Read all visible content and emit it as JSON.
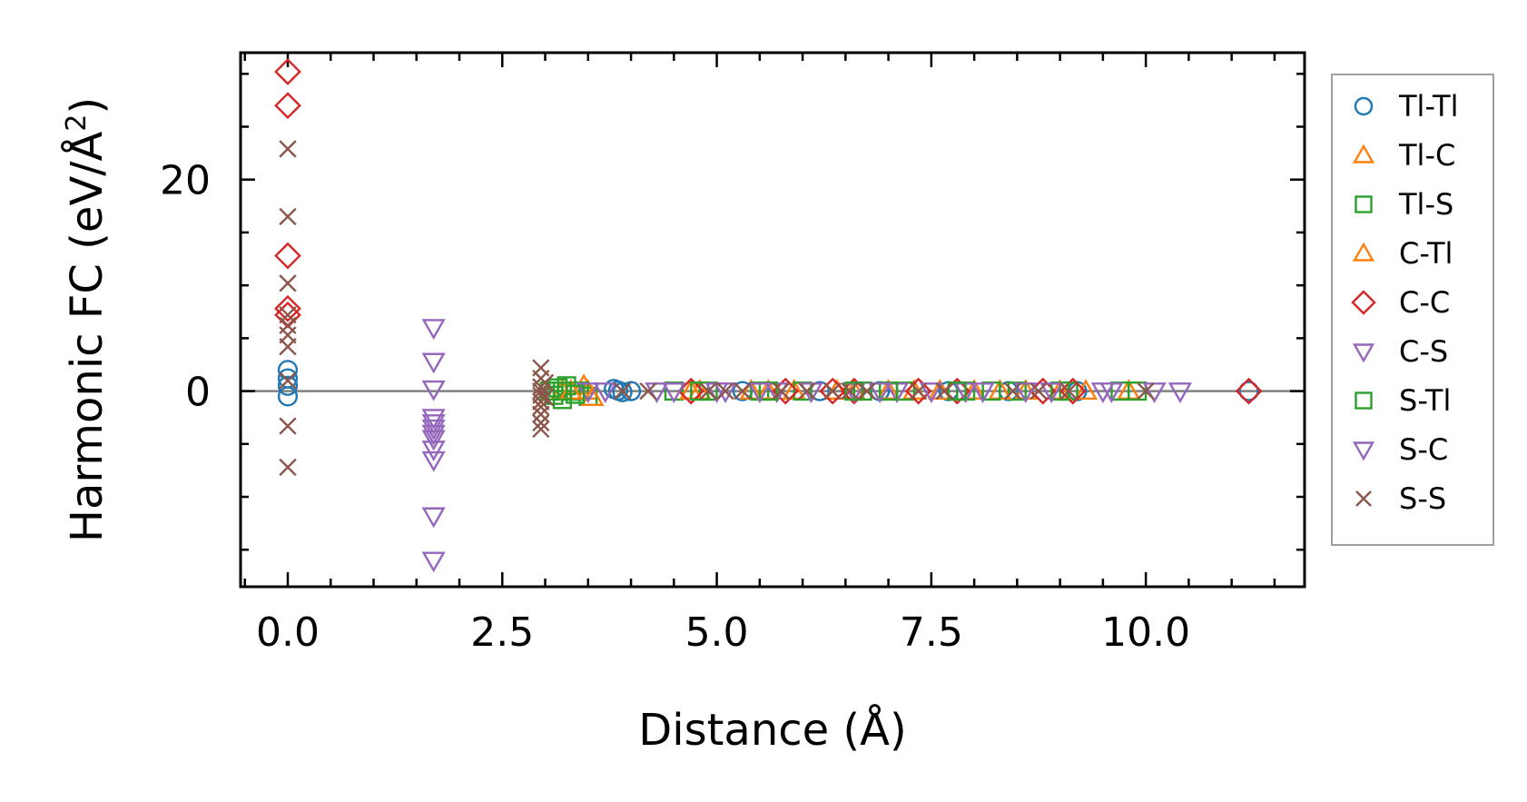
{
  "chart_data": {
    "type": "scatter",
    "title": "",
    "xlabel": "Distance (Å)",
    "ylabel_main": "Harmonic FC (eV/Å",
    "ylabel_sup": "2",
    "ylabel_end": ")",
    "xlim": [
      -0.55,
      11.85
    ],
    "ylim": [
      -18.5,
      32.0
    ],
    "xticks": [
      0.0,
      2.5,
      5.0,
      7.5,
      10.0
    ],
    "xtick_labels": [
      "0.0",
      "2.5",
      "5.0",
      "7.5",
      "10.0"
    ],
    "yticks": [
      0,
      20
    ],
    "ytick_labels": [
      "0",
      "20"
    ],
    "x_minor_step": 0.5,
    "y_minor_step": 5,
    "zero_line": true,
    "grid": false,
    "legend_position": "outside-right",
    "series": [
      {
        "name": "Tl-Tl",
        "marker": "circle",
        "color": "#1f77b4",
        "points": [
          [
            0.0,
            2.0
          ],
          [
            0.0,
            1.2
          ],
          [
            0.0,
            0.5
          ],
          [
            0.0,
            -0.5
          ],
          [
            3.8,
            0.2
          ],
          [
            3.85,
            0.05
          ],
          [
            3.9,
            -0.1
          ],
          [
            4.0,
            0.0
          ],
          [
            5.3,
            0.0
          ],
          [
            6.2,
            0.0
          ],
          [
            6.9,
            0.0
          ],
          [
            7.7,
            0.0
          ],
          [
            8.4,
            0.0
          ],
          [
            9.2,
            0.0
          ],
          [
            11.2,
            0.0
          ]
        ]
      },
      {
        "name": "Tl-C",
        "marker": "triangle-up",
        "color": "#ff7f0e",
        "points": [
          [
            3.2,
            0.0
          ],
          [
            3.45,
            0.5
          ],
          [
            3.5,
            0.0
          ],
          [
            4.8,
            0.0
          ],
          [
            5.4,
            0.0
          ],
          [
            5.9,
            0.0
          ],
          [
            6.6,
            0.0
          ],
          [
            7.3,
            0.0
          ],
          [
            8.0,
            0.0
          ],
          [
            8.6,
            0.0
          ],
          [
            9.3,
            0.0
          ],
          [
            9.8,
            0.0
          ]
        ]
      },
      {
        "name": "Tl-S",
        "marker": "square",
        "color": "#2ca02c",
        "points": [
          [
            3.05,
            0.0
          ],
          [
            3.1,
            -0.4
          ],
          [
            3.15,
            0.3
          ],
          [
            3.2,
            -0.8
          ],
          [
            3.25,
            0.5
          ],
          [
            3.3,
            0.0
          ],
          [
            3.4,
            0.0
          ],
          [
            3.5,
            -0.5
          ],
          [
            4.5,
            0.0
          ],
          [
            4.9,
            0.0
          ],
          [
            5.5,
            0.0
          ],
          [
            6.0,
            0.0
          ],
          [
            6.7,
            0.0
          ],
          [
            7.2,
            0.0
          ],
          [
            7.9,
            0.0
          ],
          [
            8.5,
            0.0
          ],
          [
            9.1,
            0.0
          ],
          [
            9.7,
            0.0
          ]
        ]
      },
      {
        "name": "C-Tl",
        "marker": "triangle-up",
        "color": "#ff7f0e",
        "points": [
          [
            3.3,
            0.0
          ],
          [
            3.55,
            -0.6
          ],
          [
            4.7,
            0.0
          ],
          [
            5.6,
            0.0
          ],
          [
            6.4,
            0.0
          ],
          [
            7.0,
            0.0
          ],
          [
            7.6,
            0.0
          ],
          [
            8.3,
            0.0
          ],
          [
            9.0,
            0.0
          ]
        ]
      },
      {
        "name": "C-C",
        "marker": "diamond",
        "color": "#d62728",
        "points": [
          [
            0.0,
            30.2
          ],
          [
            0.0,
            27.0
          ],
          [
            0.0,
            12.8
          ],
          [
            0.0,
            7.8
          ],
          [
            0.0,
            7.2
          ],
          [
            4.7,
            0.0
          ],
          [
            5.8,
            0.0
          ],
          [
            6.35,
            0.0
          ],
          [
            6.6,
            0.0
          ],
          [
            7.35,
            0.0
          ],
          [
            7.8,
            0.0
          ],
          [
            8.8,
            0.0
          ],
          [
            9.15,
            0.0
          ],
          [
            11.2,
            0.0
          ]
        ]
      },
      {
        "name": "C-S",
        "marker": "triangle-down",
        "color": "#9467bd",
        "points": [
          [
            1.7,
            6.0
          ],
          [
            1.7,
            2.8
          ],
          [
            1.7,
            0.2
          ],
          [
            1.7,
            -2.5
          ],
          [
            1.7,
            -3.0
          ],
          [
            1.7,
            -3.5
          ],
          [
            1.7,
            -4.0
          ],
          [
            1.7,
            -4.5
          ],
          [
            1.7,
            -5.5
          ],
          [
            1.7,
            -6.5
          ],
          [
            1.7,
            -11.8
          ],
          [
            1.7,
            -16.0
          ],
          [
            3.5,
            0.0
          ],
          [
            4.5,
            0.0
          ],
          [
            5.1,
            0.0
          ],
          [
            5.7,
            0.0
          ],
          [
            6.6,
            0.0
          ],
          [
            7.1,
            0.0
          ],
          [
            7.9,
            0.0
          ],
          [
            8.6,
            0.0
          ],
          [
            9.6,
            0.0
          ],
          [
            10.4,
            0.0
          ]
        ]
      },
      {
        "name": "S-Tl",
        "marker": "square",
        "color": "#2ca02c",
        "points": [
          [
            3.2,
            0.0
          ],
          [
            3.35,
            -0.3
          ],
          [
            4.8,
            0.0
          ],
          [
            5.6,
            0.0
          ],
          [
            6.6,
            0.0
          ],
          [
            7.0,
            0.0
          ],
          [
            7.8,
            0.0
          ],
          [
            8.2,
            0.0
          ],
          [
            9.0,
            0.0
          ],
          [
            9.9,
            0.0
          ]
        ]
      },
      {
        "name": "S-C",
        "marker": "triangle-down",
        "color": "#9467bd",
        "points": [
          [
            3.7,
            0.0
          ],
          [
            4.3,
            0.0
          ],
          [
            5.0,
            0.0
          ],
          [
            5.5,
            0.0
          ],
          [
            6.1,
            0.0
          ],
          [
            6.9,
            0.0
          ],
          [
            7.5,
            0.0
          ],
          [
            8.1,
            0.0
          ],
          [
            8.9,
            0.0
          ],
          [
            9.5,
            0.0
          ],
          [
            10.1,
            0.0
          ]
        ]
      },
      {
        "name": "S-S",
        "marker": "x",
        "color": "#8c564b",
        "points": [
          [
            0.0,
            22.9
          ],
          [
            0.0,
            16.5
          ],
          [
            0.0,
            10.2
          ],
          [
            0.0,
            7.2
          ],
          [
            0.0,
            6.2
          ],
          [
            0.0,
            5.3
          ],
          [
            0.0,
            4.2
          ],
          [
            0.0,
            1.0
          ],
          [
            0.0,
            -3.3
          ],
          [
            0.0,
            -7.2
          ],
          [
            2.95,
            2.2
          ],
          [
            2.95,
            1.2
          ],
          [
            2.95,
            0.4
          ],
          [
            2.95,
            0.0
          ],
          [
            2.95,
            -0.4
          ],
          [
            2.95,
            -1.0
          ],
          [
            2.95,
            -1.5
          ],
          [
            2.95,
            -2.2
          ],
          [
            2.95,
            -3.0
          ],
          [
            2.95,
            -3.6
          ],
          [
            3.0,
            0.8
          ],
          [
            3.0,
            -0.6
          ],
          [
            3.9,
            0.0
          ],
          [
            4.2,
            0.0
          ],
          [
            4.9,
            0.0
          ],
          [
            5.1,
            0.0
          ],
          [
            5.3,
            0.0
          ],
          [
            5.75,
            0.0
          ],
          [
            6.05,
            0.0
          ],
          [
            6.35,
            0.0
          ],
          [
            6.55,
            0.0
          ],
          [
            6.75,
            0.0
          ],
          [
            7.35,
            0.0
          ],
          [
            7.65,
            0.0
          ],
          [
            8.45,
            0.0
          ],
          [
            8.75,
            0.0
          ],
          [
            9.1,
            0.0
          ],
          [
            10.0,
            0.0
          ]
        ]
      }
    ]
  }
}
